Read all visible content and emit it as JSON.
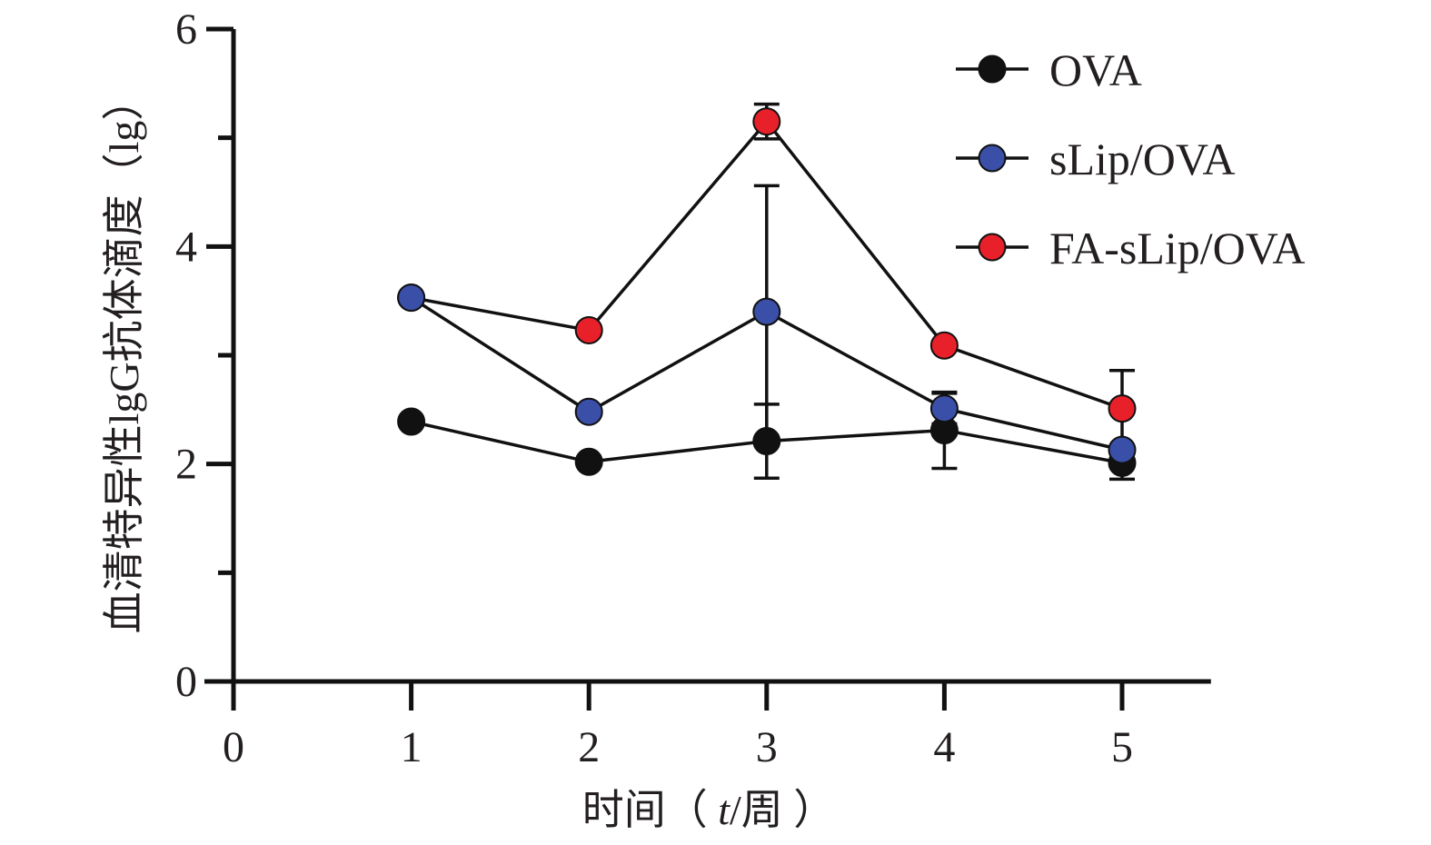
{
  "chart_data": {
    "type": "line",
    "title": "",
    "xlabel": "时间（ t/周 ）",
    "xlabel_parts": {
      "prefix": "时间（ ",
      "italic": "t",
      "suffix": "/周 ）"
    },
    "ylabel": "血清特异性lgG抗体滴度（lg）",
    "xlim": [
      0,
      5.5
    ],
    "ylim": [
      0,
      6
    ],
    "x_ticks": [
      0,
      1,
      2,
      3,
      4,
      5
    ],
    "x_tick_labels": [
      "0",
      "1",
      "2",
      "3",
      "4",
      "5"
    ],
    "y_ticks": [
      0,
      2,
      4,
      6
    ],
    "y_tick_labels": [
      "0",
      "2",
      "4",
      "6"
    ],
    "y_minor_ticks": [
      1,
      3,
      5
    ],
    "grid": false,
    "legend_position": "top-right",
    "x": [
      1,
      2,
      3,
      4,
      5
    ],
    "series": [
      {
        "name": "OVA",
        "color": "#111111",
        "values": [
          2.39,
          2.02,
          2.21,
          2.31,
          2.01
        ],
        "error": [
          null,
          null,
          0.34,
          0.35,
          0.15
        ]
      },
      {
        "name": "sLip/OVA",
        "color": "#3a4fa8",
        "values": [
          3.53,
          2.48,
          3.4,
          2.51,
          2.13
        ],
        "error": [
          null,
          null,
          1.16,
          0.14,
          null
        ]
      },
      {
        "name": "FA-sLip/OVA",
        "color": "#e8202a",
        "values": [
          3.53,
          3.23,
          5.15,
          3.09,
          2.51
        ],
        "error": [
          null,
          null,
          0.16,
          null,
          0.35
        ]
      }
    ]
  }
}
